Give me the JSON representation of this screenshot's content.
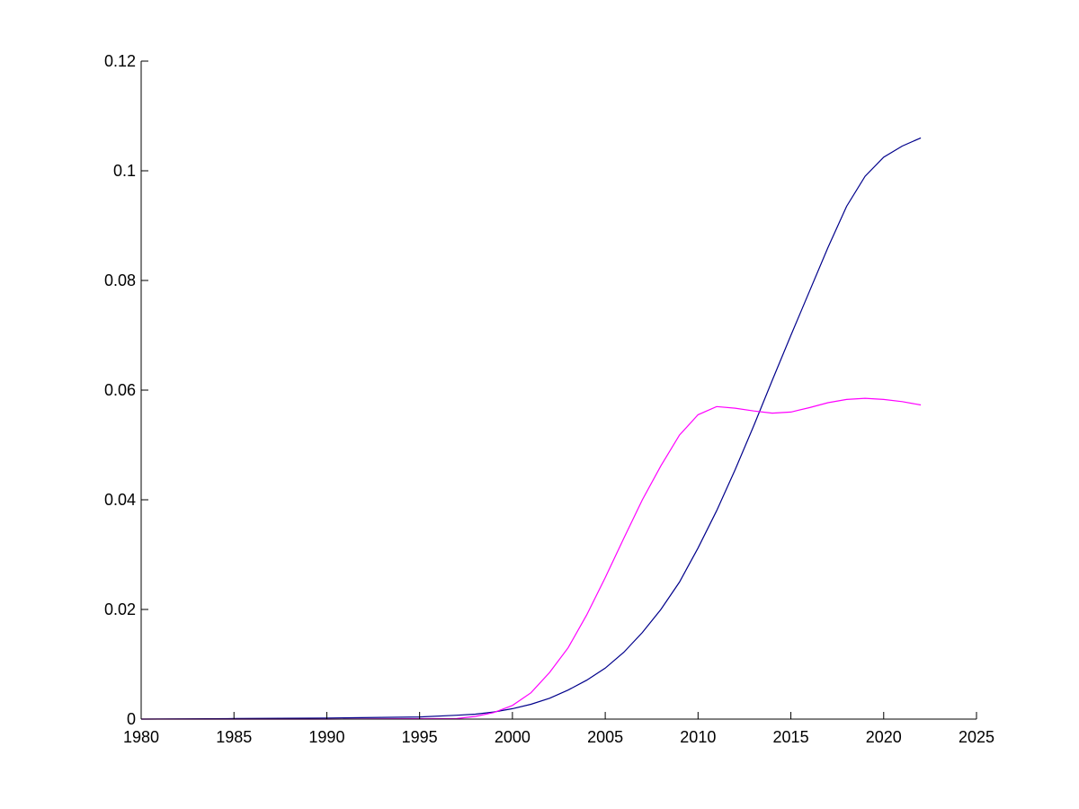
{
  "chart_data": {
    "type": "line",
    "title": "",
    "xlabel": "",
    "ylabel": "",
    "xlim": [
      1980,
      2025
    ],
    "ylim": [
      0,
      0.12
    ],
    "grid": false,
    "legend": "none",
    "x_ticks": [
      1980,
      1985,
      1990,
      1995,
      2000,
      2005,
      2010,
      2015,
      2020,
      2025
    ],
    "x_tick_labels": [
      "1980",
      "1985",
      "1990",
      "1995",
      "2000",
      "2005",
      "2010",
      "2015",
      "2020",
      "2025"
    ],
    "y_ticks": [
      0,
      0.02,
      0.04,
      0.06,
      0.08,
      0.1,
      0.12
    ],
    "y_tick_labels": [
      "0",
      "0.02",
      "0.04",
      "0.06",
      "0.08",
      "0.1",
      "0.12"
    ],
    "series": [
      {
        "color": "#00008b",
        "x": [
          1980,
          1985,
          1990,
          1995,
          1997,
          1998,
          1999,
          2000,
          2001,
          2002,
          2003,
          2004,
          2005,
          2006,
          2007,
          2008,
          2009,
          2010,
          2011,
          2012,
          2013,
          2014,
          2015,
          2016,
          2017,
          2018,
          2019,
          2020,
          2021,
          2022
        ],
        "values": [
          0.0,
          0.0001,
          0.0002,
          0.0004,
          0.0007,
          0.0009,
          0.0013,
          0.0019,
          0.0027,
          0.0038,
          0.0053,
          0.0071,
          0.0093,
          0.0122,
          0.0158,
          0.02,
          0.025,
          0.0312,
          0.038,
          0.0455,
          0.0535,
          0.0618,
          0.07,
          0.078,
          0.086,
          0.0935,
          0.099,
          0.1025,
          0.1045,
          0.106
        ]
      },
      {
        "color": "#ff00ff",
        "x": [
          1980,
          1990,
          1997,
          1998,
          1999,
          2000,
          2001,
          2002,
          2003,
          2004,
          2005,
          2006,
          2007,
          2008,
          2009,
          2010,
          2011,
          2012,
          2013,
          2014,
          2015,
          2016,
          2017,
          2018,
          2019,
          2020,
          2021,
          2022
        ],
        "values": [
          0.0,
          0.0,
          0.0001,
          0.0005,
          0.0012,
          0.0025,
          0.0048,
          0.0085,
          0.013,
          0.019,
          0.0258,
          0.033,
          0.04,
          0.0462,
          0.0518,
          0.0555,
          0.057,
          0.0567,
          0.0562,
          0.0558,
          0.056,
          0.0568,
          0.0577,
          0.0583,
          0.0585,
          0.0583,
          0.0579,
          0.0573
        ]
      }
    ]
  }
}
